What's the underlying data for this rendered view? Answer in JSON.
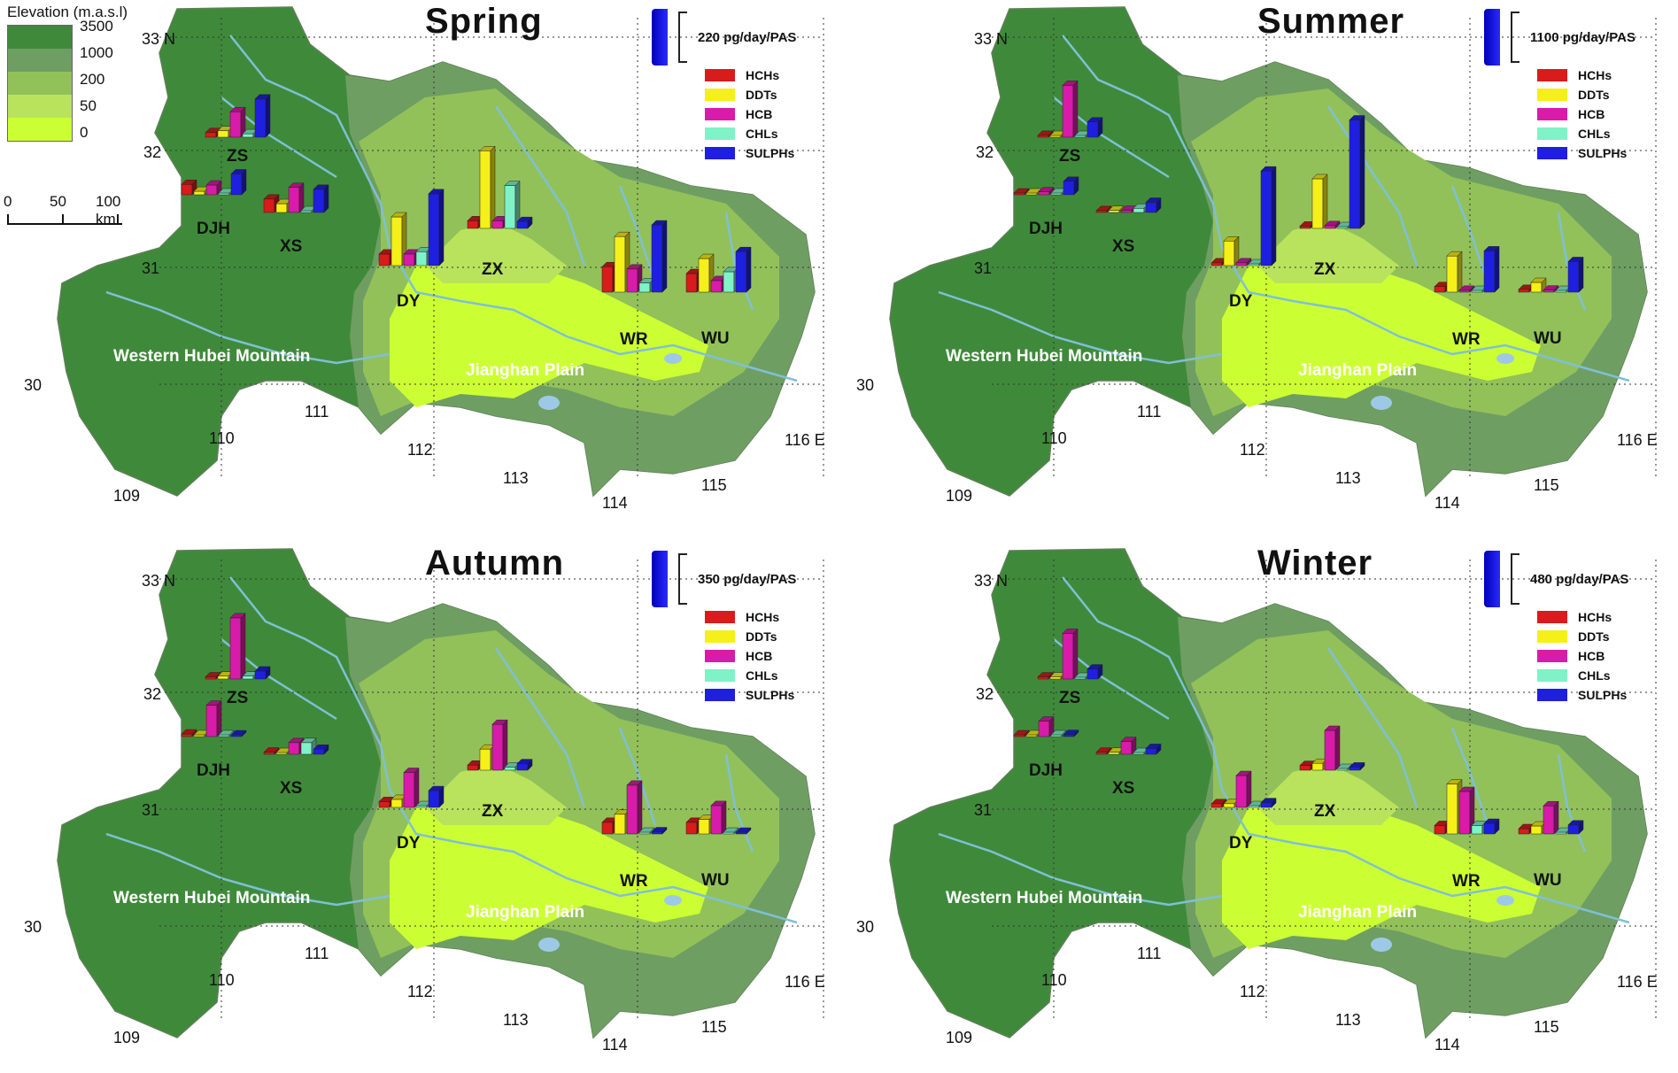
{
  "elevation_legend": {
    "title": "Elevation (m.a.s.l)",
    "levels": [
      "3500",
      "1000",
      "200",
      "50",
      "0"
    ],
    "colors": [
      "#3f8a3a",
      "#6f9e63",
      "#92c15a",
      "#b9e35d",
      "#ccff33"
    ]
  },
  "scalebar": {
    "labels": [
      "0",
      "50",
      "100 km"
    ]
  },
  "compounds": [
    {
      "name": "HCHs",
      "color": "#d81b1b"
    },
    {
      "name": "DDTs",
      "color": "#f5ef1a"
    },
    {
      "name": "HCB",
      "color": "#d81ba8"
    },
    {
      "name": "CHLs",
      "color": "#7ff2c8"
    },
    {
      "name": "SULPHs",
      "color": "#1f1fe0"
    }
  ],
  "map_labels": {
    "mountain": "Western Hubei Mountain",
    "plain": "Jianghan Plain"
  },
  "lat_labels": [
    "33 N",
    "32",
    "31",
    "30"
  ],
  "lon_labels": [
    "109",
    "110",
    "111",
    "112",
    "113",
    "114",
    "115",
    "116 E"
  ],
  "sites": [
    "ZS",
    "DJH",
    "XS",
    "DY",
    "ZX",
    "WR",
    "WU"
  ],
  "panels": [
    {
      "season": "Spring",
      "scale_label": "220 pg/day/PAS",
      "scale_value": 220
    },
    {
      "season": "Summer",
      "scale_label": "1100 pg/day/PAS",
      "scale_value": 1100
    },
    {
      "season": "Autumn",
      "scale_label": "350 pg/day/PAS",
      "scale_value": 350
    },
    {
      "season": "Winter",
      "scale_label": "480 pg/day/PAS",
      "scale_value": 480
    }
  ],
  "chart_data": {
    "type": "bar",
    "units": "pg/day/PAS",
    "series_names": [
      "HCHs",
      "DDTs",
      "HCB",
      "CHLs",
      "SULPHs"
    ],
    "panels": [
      {
        "season": "Spring",
        "sites": {
          "ZS": [
            20,
            28,
            110,
            15,
            165
          ],
          "DJH": [
            45,
            15,
            42,
            0,
            90
          ],
          "XS": [
            58,
            38,
            108,
            0,
            100
          ],
          "DY": [
            50,
            210,
            50,
            60,
            310
          ],
          "ZX": [
            33,
            335,
            33,
            185,
            30
          ],
          "WR": [
            110,
            240,
            100,
            40,
            290
          ],
          "WU": [
            80,
            145,
            50,
            88,
            175
          ]
        }
      },
      {
        "season": "Summer",
        "sites": {
          "ZS": [
            40,
            25,
            1120,
            0,
            330
          ],
          "DJH": [
            25,
            10,
            65,
            0,
            290
          ],
          "XS": [
            40,
            45,
            45,
            90,
            220
          ],
          "DY": [
            60,
            530,
            60,
            0,
            2040
          ],
          "ZX": [
            50,
            1070,
            60,
            0,
            2340
          ],
          "WR": [
            120,
            780,
            40,
            0,
            890
          ],
          "WU": [
            60,
            210,
            45,
            30,
            660
          ]
        }
      },
      {
        "season": "Autumn",
        "sites": {
          "ZS": [
            15,
            20,
            420,
            20,
            55
          ],
          "DJH": [
            18,
            12,
            215,
            0,
            8
          ],
          "XS": [
            15,
            10,
            80,
            80,
            35
          ],
          "DY": [
            40,
            55,
            240,
            0,
            115
          ],
          "ZX": [
            35,
            145,
            315,
            22,
            45
          ],
          "WR": [
            80,
            135,
            335,
            0,
            15
          ],
          "WU": [
            80,
            100,
            195,
            0,
            10
          ]
        }
      },
      {
        "season": "Winter",
        "sites": {
          "ZS": [
            20,
            20,
            430,
            0,
            95
          ],
          "DJH": [
            10,
            10,
            145,
            0,
            20
          ],
          "XS": [
            20,
            20,
            120,
            0,
            55
          ],
          "DY": [
            35,
            35,
            300,
            0,
            45
          ],
          "ZX": [
            45,
            65,
            375,
            0,
            30
          ],
          "WR": [
            80,
            470,
            400,
            80,
            100
          ],
          "WU": [
            50,
            75,
            265,
            0,
            85
          ]
        }
      }
    ]
  }
}
